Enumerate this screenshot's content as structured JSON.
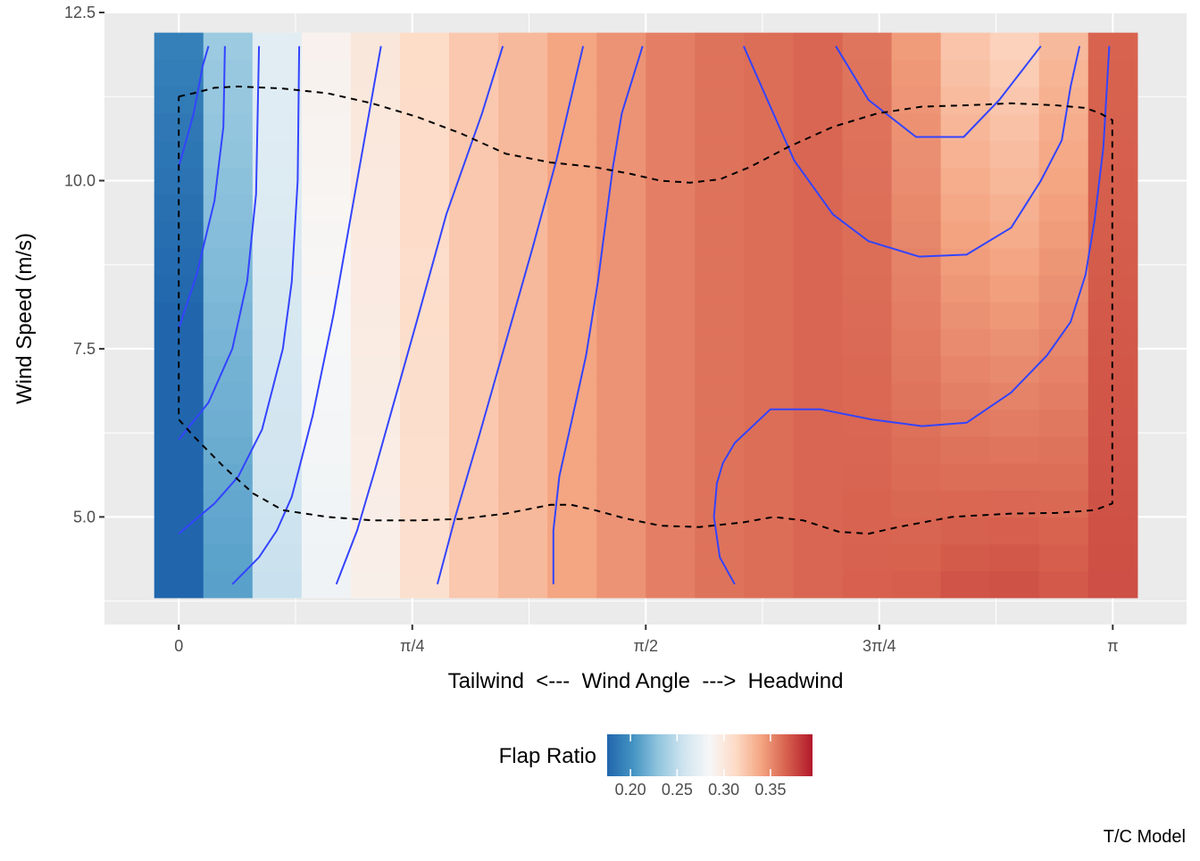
{
  "chart_data": {
    "type": "heatmap",
    "title": "",
    "xlabel": "Tailwind  <---  Wind Angle  --->  Headwind",
    "ylabel": "Wind Speed (m/s)",
    "caption": "T/C Model",
    "x_range": [
      -0.25,
      3.39
    ],
    "ylim": [
      3.4,
      12.5
    ],
    "x_ticks": [
      {
        "value": 0,
        "label": "0"
      },
      {
        "value": 0.7854,
        "label": "π/4"
      },
      {
        "value": 1.5708,
        "label": "π/2"
      },
      {
        "value": 2.3562,
        "label": "3π/4"
      },
      {
        "value": 3.1416,
        "label": "π"
      }
    ],
    "y_ticks": [
      {
        "value": 5.0,
        "label": "5.0"
      },
      {
        "value": 7.5,
        "label": "7.5"
      },
      {
        "value": 10.0,
        "label": "10.0"
      },
      {
        "value": 12.5,
        "label": "12.5"
      }
    ],
    "grid": true,
    "heatmap": {
      "x_centers": [
        0.0,
        0.1653,
        0.3307,
        0.496,
        0.6614,
        0.8267,
        0.9921,
        1.1574,
        1.3228,
        1.4881,
        1.6535,
        1.8188,
        1.9842,
        2.1495,
        2.3149,
        2.4802,
        2.6456,
        2.8109,
        2.9763,
        3.1416
      ],
      "y_min": 3.8,
      "y_max": 12.2,
      "y_steps": 21,
      "column_base": [
        0.175,
        0.222,
        0.262,
        0.285,
        0.297,
        0.31,
        0.322,
        0.33,
        0.34,
        0.347,
        0.355,
        0.36,
        0.362,
        0.365,
        0.363,
        0.356,
        0.348,
        0.345,
        0.35,
        0.37
      ],
      "column_speed_slope": [
        0.004,
        0.003,
        0.002,
        0.0015,
        0.001,
        0.0005,
        0.0,
        0.0,
        0.0,
        0.0,
        0.0,
        0.0,
        0.0,
        0.0,
        -0.001,
        -0.003,
        -0.006,
        -0.007,
        -0.005,
        -0.001
      ]
    },
    "contours": [
      {
        "points": [
          [
            0.0,
            10.2
          ],
          [
            0.05,
            11.0
          ],
          [
            0.08,
            11.7
          ],
          [
            0.1,
            12.0
          ]
        ]
      },
      {
        "points": [
          [
            0.0,
            7.8
          ],
          [
            0.06,
            8.6
          ],
          [
            0.12,
            9.7
          ],
          [
            0.15,
            10.8
          ],
          [
            0.155,
            12.0
          ]
        ]
      },
      {
        "points": [
          [
            0.0,
            6.15
          ],
          [
            0.1,
            6.7
          ],
          [
            0.18,
            7.5
          ],
          [
            0.23,
            8.5
          ],
          [
            0.26,
            9.8
          ],
          [
            0.27,
            12.0
          ]
        ]
      },
      {
        "points": [
          [
            0.0,
            4.75
          ],
          [
            0.12,
            5.2
          ],
          [
            0.2,
            5.6
          ],
          [
            0.28,
            6.3
          ],
          [
            0.35,
            7.5
          ],
          [
            0.38,
            8.5
          ],
          [
            0.4,
            10.0
          ],
          [
            0.405,
            12.0
          ]
        ]
      },
      {
        "points": [
          [
            0.18,
            4.0
          ],
          [
            0.27,
            4.4
          ],
          [
            0.33,
            4.8
          ],
          [
            0.38,
            5.3
          ],
          [
            0.45,
            6.5
          ],
          [
            0.52,
            8.0
          ],
          [
            0.6,
            10.0
          ],
          [
            0.68,
            12.0
          ]
        ]
      },
      {
        "points": [
          [
            0.53,
            4.0
          ],
          [
            0.6,
            4.8
          ],
          [
            0.66,
            5.7
          ],
          [
            0.73,
            6.8
          ],
          [
            0.8,
            7.9
          ],
          [
            0.9,
            9.5
          ],
          [
            1.02,
            11.0
          ],
          [
            1.09,
            12.0
          ]
        ]
      },
      {
        "points": [
          [
            0.87,
            4.0
          ],
          [
            0.93,
            5.0
          ],
          [
            1.01,
            6.2
          ],
          [
            1.1,
            7.6
          ],
          [
            1.19,
            9.0
          ],
          [
            1.27,
            10.3
          ],
          [
            1.36,
            12.0
          ]
        ]
      },
      {
        "points": [
          [
            1.26,
            4.0
          ],
          [
            1.26,
            4.8
          ],
          [
            1.28,
            5.6
          ],
          [
            1.32,
            6.4
          ],
          [
            1.37,
            7.4
          ],
          [
            1.41,
            8.5
          ],
          [
            1.46,
            10.2
          ],
          [
            1.49,
            11.0
          ],
          [
            1.56,
            12.0
          ]
        ]
      },
      {
        "points": [
          [
            1.87,
            4.0
          ],
          [
            1.82,
            4.4
          ],
          [
            1.8,
            5.0
          ],
          [
            1.81,
            5.5
          ],
          [
            1.83,
            5.8
          ],
          [
            1.87,
            6.1
          ],
          [
            1.99,
            6.6
          ],
          [
            2.16,
            6.6
          ],
          [
            2.33,
            6.45
          ],
          [
            2.5,
            6.35
          ],
          [
            2.65,
            6.4
          ],
          [
            2.8,
            6.85
          ],
          [
            2.92,
            7.4
          ],
          [
            3.0,
            7.9
          ],
          [
            3.05,
            8.6
          ],
          [
            3.08,
            9.4
          ],
          [
            3.11,
            10.5
          ],
          [
            3.13,
            12.0
          ]
        ]
      },
      {
        "points": [
          [
            1.9,
            12.0
          ],
          [
            1.98,
            11.2
          ],
          [
            2.07,
            10.3
          ],
          [
            2.2,
            9.5
          ],
          [
            2.32,
            9.1
          ],
          [
            2.49,
            8.87
          ],
          [
            2.65,
            8.9
          ],
          [
            2.8,
            9.3
          ],
          [
            2.9,
            10.0
          ],
          [
            2.97,
            10.6
          ],
          [
            3.0,
            11.4
          ],
          [
            3.03,
            12.0
          ]
        ]
      },
      {
        "points": [
          [
            2.21,
            12.0
          ],
          [
            2.32,
            11.2
          ],
          [
            2.48,
            10.65
          ],
          [
            2.64,
            10.65
          ],
          [
            2.76,
            11.2
          ],
          [
            2.9,
            12.0
          ]
        ]
      }
    ],
    "boundary": {
      "points": [
        [
          0.0,
          11.25
        ],
        [
          0.05,
          11.3
        ],
        [
          0.12,
          11.38
        ],
        [
          0.2,
          11.4
        ],
        [
          0.35,
          11.37
        ],
        [
          0.5,
          11.3
        ],
        [
          0.65,
          11.15
        ],
        [
          0.8,
          10.95
        ],
        [
          0.95,
          10.7
        ],
        [
          1.1,
          10.4
        ],
        [
          1.25,
          10.27
        ],
        [
          1.4,
          10.2
        ],
        [
          1.52,
          10.1
        ],
        [
          1.62,
          10.0
        ],
        [
          1.72,
          9.97
        ],
        [
          1.82,
          10.02
        ],
        [
          1.92,
          10.2
        ],
        [
          2.05,
          10.5
        ],
        [
          2.2,
          10.8
        ],
        [
          2.35,
          11.0
        ],
        [
          2.5,
          11.1
        ],
        [
          2.65,
          11.12
        ],
        [
          2.8,
          11.15
        ],
        [
          2.95,
          11.12
        ],
        [
          3.05,
          11.08
        ],
        [
          3.1,
          11.0
        ],
        [
          3.14,
          10.9
        ],
        [
          3.14,
          5.2
        ],
        [
          3.08,
          5.1
        ],
        [
          2.95,
          5.06
        ],
        [
          2.8,
          5.05
        ],
        [
          2.6,
          5.0
        ],
        [
          2.42,
          4.85
        ],
        [
          2.32,
          4.75
        ],
        [
          2.22,
          4.78
        ],
        [
          2.1,
          4.95
        ],
        [
          2.0,
          5.0
        ],
        [
          1.9,
          4.92
        ],
        [
          1.75,
          4.85
        ],
        [
          1.62,
          4.87
        ],
        [
          1.5,
          4.98
        ],
        [
          1.4,
          5.1
        ],
        [
          1.32,
          5.18
        ],
        [
          1.25,
          5.18
        ],
        [
          1.1,
          5.05
        ],
        [
          0.95,
          4.97
        ],
        [
          0.8,
          4.95
        ],
        [
          0.65,
          4.95
        ],
        [
          0.5,
          5.0
        ],
        [
          0.35,
          5.1
        ],
        [
          0.25,
          5.35
        ],
        [
          0.15,
          5.75
        ],
        [
          0.05,
          6.2
        ],
        [
          0.0,
          6.45
        ],
        [
          0.0,
          11.25
        ]
      ]
    },
    "legend": {
      "title": "Flap Ratio",
      "position": "bottom",
      "range": [
        0.175,
        0.395
      ],
      "ticks": [
        {
          "value": 0.2,
          "label": "0.20"
        },
        {
          "value": 0.25,
          "label": "0.25"
        },
        {
          "value": 0.3,
          "label": "0.30"
        },
        {
          "value": 0.35,
          "label": "0.35"
        }
      ]
    },
    "colors": {
      "contour_line": "#3344ff",
      "boundary_line": "#000000",
      "panel_background": "#ebebeb",
      "grid": "#ffffff",
      "palette": [
        "#2166ac",
        "#4393c3",
        "#92c5de",
        "#d1e5f0",
        "#f7f7f7",
        "#fddbc7",
        "#f4a582",
        "#d6604d",
        "#b2182b"
      ]
    }
  }
}
